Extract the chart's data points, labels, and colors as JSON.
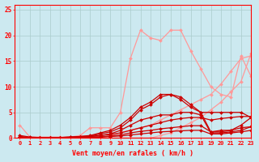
{
  "title": "",
  "xlabel": "Vent moyen/en rafales ( km/h )",
  "ylabel": "",
  "xlim": [
    -0.5,
    23
  ],
  "ylim": [
    0,
    26
  ],
  "xticks": [
    0,
    1,
    2,
    3,
    4,
    5,
    6,
    7,
    8,
    9,
    10,
    11,
    12,
    13,
    14,
    15,
    16,
    17,
    18,
    19,
    20,
    21,
    22,
    23
  ],
  "yticks": [
    0,
    5,
    10,
    15,
    20,
    25
  ],
  "background_color": "#cce9f0",
  "grid_color": "#aacccc",
  "series": [
    {
      "x": [
        0,
        1,
        2,
        3,
        4,
        5,
        6,
        7,
        8,
        9,
        10,
        11,
        12,
        13,
        14,
        15,
        16,
        17,
        18,
        19,
        20,
        21,
        22,
        23
      ],
      "y": [
        2.5,
        0.2,
        0.2,
        0.2,
        0.2,
        0.2,
        0.5,
        2.0,
        2.0,
        2.0,
        5.0,
        15.5,
        21.0,
        19.5,
        19.0,
        21.0,
        21.0,
        17.0,
        13.5,
        10.0,
        8.5,
        8.0,
        16.0,
        12.0
      ],
      "color": "#ff9999",
      "lw": 0.9,
      "marker": "D",
      "ms": 2.0
    },
    {
      "x": [
        0,
        1,
        2,
        3,
        4,
        5,
        6,
        7,
        8,
        9,
        10,
        11,
        12,
        13,
        14,
        15,
        16,
        17,
        18,
        19,
        20,
        21,
        22,
        23
      ],
      "y": [
        0,
        0,
        0,
        0,
        0,
        0,
        0,
        0,
        0,
        0.5,
        1.0,
        1.5,
        2.0,
        2.5,
        3.5,
        4.5,
        5.5,
        6.5,
        7.5,
        8.5,
        10.5,
        13.0,
        15.5,
        16.0
      ],
      "color": "#ff9999",
      "lw": 0.9,
      "marker": "D",
      "ms": 2.0
    },
    {
      "x": [
        0,
        1,
        2,
        3,
        4,
        5,
        6,
        7,
        8,
        9,
        10,
        11,
        12,
        13,
        14,
        15,
        16,
        17,
        18,
        19,
        20,
        21,
        22,
        23
      ],
      "y": [
        0,
        0,
        0,
        0,
        0,
        0,
        0,
        0,
        0,
        0,
        0,
        0,
        0,
        0,
        0.5,
        1.0,
        2.0,
        3.0,
        4.0,
        5.5,
        7.0,
        9.0,
        11.0,
        16.5
      ],
      "color": "#ff9999",
      "lw": 0.9,
      "marker": "D",
      "ms": 2.0
    },
    {
      "x": [
        0,
        1,
        2,
        3,
        4,
        5,
        6,
        7,
        8,
        9,
        10,
        11,
        12,
        13,
        14,
        15,
        16,
        17,
        18,
        19,
        20,
        21,
        22,
        23
      ],
      "y": [
        0.5,
        0.2,
        0.1,
        0.1,
        0.1,
        0.2,
        0.3,
        0.5,
        1.0,
        1.5,
        2.5,
        4.0,
        6.0,
        7.0,
        8.5,
        8.5,
        8.0,
        6.5,
        5.0,
        5.0,
        5.0,
        5.0,
        5.0,
        4.0
      ],
      "color": "#cc0000",
      "lw": 0.9,
      "marker": "D",
      "ms": 2.0
    },
    {
      "x": [
        0,
        1,
        2,
        3,
        4,
        5,
        6,
        7,
        8,
        9,
        10,
        11,
        12,
        13,
        14,
        15,
        16,
        17,
        18,
        19,
        20,
        21,
        22,
        23
      ],
      "y": [
        0.3,
        0.1,
        0.1,
        0.1,
        0.1,
        0.2,
        0.3,
        0.4,
        0.8,
        1.2,
        2.0,
        3.5,
        5.5,
        6.5,
        8.0,
        8.5,
        7.5,
        6.0,
        5.0,
        1.2,
        1.2,
        1.5,
        2.5,
        4.0
      ],
      "color": "#cc0000",
      "lw": 0.9,
      "marker": "D",
      "ms": 2.0
    },
    {
      "x": [
        0,
        1,
        2,
        3,
        4,
        5,
        6,
        7,
        8,
        9,
        10,
        11,
        12,
        13,
        14,
        15,
        16,
        17,
        18,
        19,
        20,
        21,
        22,
        23
      ],
      "y": [
        0.2,
        0.1,
        0.1,
        0.1,
        0.1,
        0.1,
        0.2,
        0.3,
        0.5,
        0.8,
        1.5,
        2.5,
        3.5,
        4.0,
        4.5,
        4.5,
        5.0,
        5.0,
        4.5,
        1.0,
        1.0,
        1.2,
        1.5,
        2.2
      ],
      "color": "#cc0000",
      "lw": 0.9,
      "marker": "D",
      "ms": 2.0
    },
    {
      "x": [
        0,
        1,
        2,
        3,
        4,
        5,
        6,
        7,
        8,
        9,
        10,
        11,
        12,
        13,
        14,
        15,
        16,
        17,
        18,
        19,
        20,
        21,
        22,
        23
      ],
      "y": [
        0.2,
        0.0,
        0.0,
        0.0,
        0.0,
        0.1,
        0.2,
        0.3,
        0.5,
        0.7,
        1.0,
        1.5,
        2.0,
        2.5,
        3.0,
        3.5,
        3.8,
        4.0,
        4.0,
        3.5,
        3.8,
        4.0,
        4.2,
        4.2
      ],
      "color": "#cc0000",
      "lw": 0.9,
      "marker": "D",
      "ms": 2.0
    },
    {
      "x": [
        0,
        1,
        2,
        3,
        4,
        5,
        6,
        7,
        8,
        9,
        10,
        11,
        12,
        13,
        14,
        15,
        16,
        17,
        18,
        19,
        20,
        21,
        22,
        23
      ],
      "y": [
        0.1,
        0.0,
        0.0,
        0.0,
        0.0,
        0.0,
        0.1,
        0.15,
        0.25,
        0.4,
        0.6,
        1.0,
        1.3,
        1.5,
        1.8,
        2.0,
        2.2,
        2.4,
        2.4,
        1.2,
        1.5,
        1.5,
        2.0,
        2.2
      ],
      "color": "#cc0000",
      "lw": 0.9,
      "marker": "D",
      "ms": 2.0
    },
    {
      "x": [
        0,
        1,
        2,
        3,
        4,
        5,
        6,
        7,
        8,
        9,
        10,
        11,
        12,
        13,
        14,
        15,
        16,
        17,
        18,
        19,
        20,
        21,
        22,
        23
      ],
      "y": [
        0.0,
        0.0,
        0.0,
        0.0,
        0.0,
        0.0,
        0.0,
        0.1,
        0.2,
        0.3,
        0.4,
        0.6,
        0.8,
        1.0,
        1.2,
        1.3,
        1.4,
        1.5,
        1.5,
        0.8,
        0.8,
        1.0,
        1.2,
        1.5
      ],
      "color": "#cc0000",
      "lw": 0.9,
      "marker": "D",
      "ms": 2.0
    }
  ]
}
